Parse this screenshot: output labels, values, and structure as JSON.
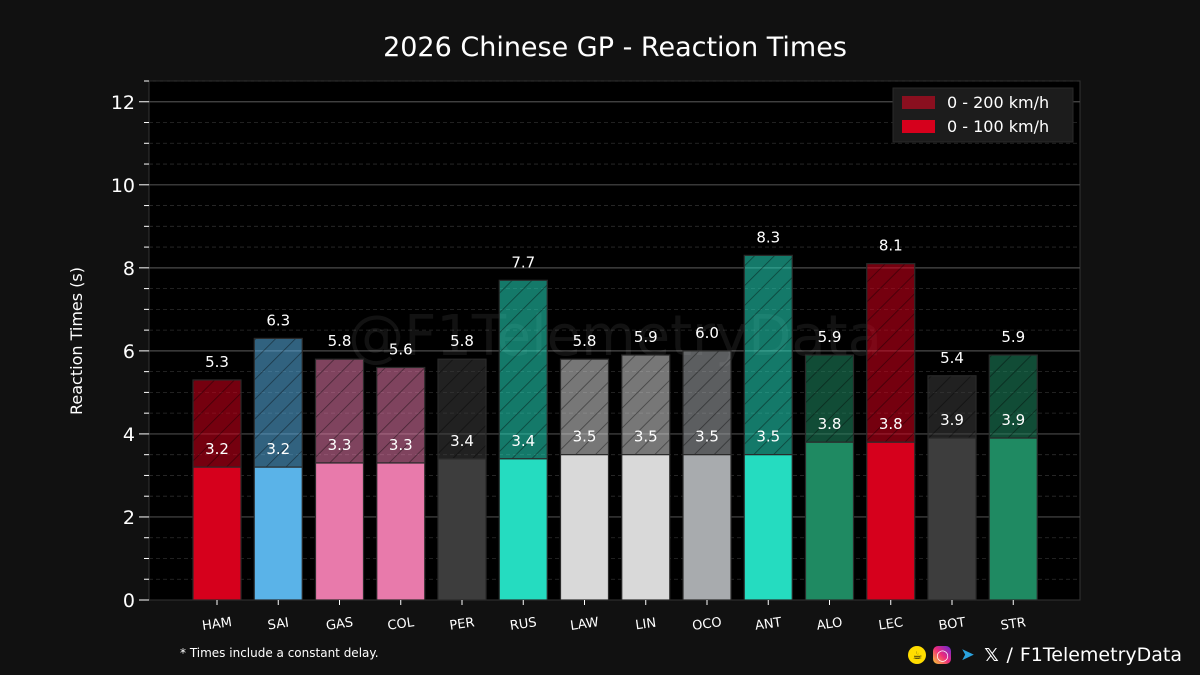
{
  "chart_data": {
    "type": "bar",
    "title": "2026 Chinese GP - Reaction Times",
    "ylabel": "Reaction Times (s)",
    "xlabel": "",
    "ylim": [
      0,
      12.5
    ],
    "yticks": [
      0,
      2,
      4,
      6,
      8,
      10,
      12
    ],
    "grid": true,
    "legend_placement": "top-right",
    "categories": [
      "HAM",
      "SAI",
      "GAS",
      "COL",
      "PER",
      "RUS",
      "LAW",
      "LIN",
      "OCO",
      "ANT",
      "ALO",
      "LEC",
      "BOT",
      "STR"
    ],
    "colors": [
      "#d6001c",
      "#5ab3e8",
      "#e87aab",
      "#e87aab",
      "#3d3d3d",
      "#25dcc0",
      "#d9d9d9",
      "#d9d9d9",
      "#a8abae",
      "#25dcc0",
      "#1f8a62",
      "#d6001c",
      "#3d3d3d",
      "#1f8a62"
    ],
    "series": [
      {
        "name": "0 - 100 km/h",
        "values": [
          3.2,
          3.2,
          3.3,
          3.3,
          3.4,
          3.4,
          3.5,
          3.5,
          3.5,
          3.5,
          3.8,
          3.8,
          3.9,
          3.9
        ]
      },
      {
        "name": "0 - 200 km/h",
        "values": [
          5.3,
          6.3,
          5.8,
          5.6,
          5.8,
          7.7,
          5.8,
          5.9,
          6.0,
          8.3,
          5.9,
          8.1,
          5.4,
          5.9
        ]
      }
    ],
    "legend_colors": {
      "0 - 200 km/h": "#8a0f1f",
      "0 - 100 km/h": "#d6001c"
    }
  },
  "watermark": "@F1TelemetryData",
  "footnote": "* Times include a constant delay.",
  "social": {
    "icons": [
      "coffee-icon",
      "instagram-icon",
      "telegram-icon",
      "x-icon"
    ],
    "separator": "/",
    "handle": "F1TelemetryData"
  }
}
